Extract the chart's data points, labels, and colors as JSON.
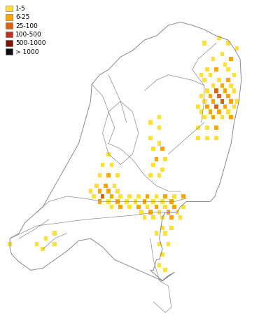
{
  "legend_labels": [
    "1-5",
    "6-25",
    "25-100",
    "100-500",
    "500-1000",
    "> 1000"
  ],
  "legend_colors": [
    "#FFE033",
    "#FFA500",
    "#E06010",
    "#C03020",
    "#801008",
    "#101010"
  ],
  "background_color": "#ffffff",
  "map_edge_color": "#888888",
  "map_linewidth": 0.6,
  "figsize": [
    3.7,
    4.62
  ],
  "dpi": 100,
  "xlim": [
    3.2,
    7.5
  ],
  "ylim": [
    50.7,
    53.75
  ],
  "sq_lon": 0.065,
  "sq_lat": 0.042,
  "squares": [
    {
      "lon": 6.85,
      "lat": 53.4,
      "cat": 1
    },
    {
      "lon": 6.6,
      "lat": 53.35,
      "cat": 1
    },
    {
      "lon": 7.0,
      "lat": 53.35,
      "cat": 1
    },
    {
      "lon": 7.15,
      "lat": 53.3,
      "cat": 1
    },
    {
      "lon": 6.9,
      "lat": 53.25,
      "cat": 1
    },
    {
      "lon": 7.05,
      "lat": 53.2,
      "cat": 2
    },
    {
      "lon": 6.75,
      "lat": 53.2,
      "cat": 1
    },
    {
      "lon": 6.95,
      "lat": 53.15,
      "cat": 1
    },
    {
      "lon": 6.65,
      "lat": 53.1,
      "cat": 1
    },
    {
      "lon": 6.8,
      "lat": 53.1,
      "cat": 2
    },
    {
      "lon": 7.0,
      "lat": 53.1,
      "cat": 1
    },
    {
      "lon": 7.1,
      "lat": 53.05,
      "cat": 1
    },
    {
      "lon": 6.55,
      "lat": 53.05,
      "cat": 1
    },
    {
      "lon": 6.7,
      "lat": 53.05,
      "cat": 1
    },
    {
      "lon": 6.85,
      "lat": 53.0,
      "cat": 1
    },
    {
      "lon": 7.0,
      "lat": 53.0,
      "cat": 2
    },
    {
      "lon": 6.6,
      "lat": 53.0,
      "cat": 1
    },
    {
      "lon": 6.75,
      "lat": 52.95,
      "cat": 1
    },
    {
      "lon": 6.9,
      "lat": 52.95,
      "cat": 2
    },
    {
      "lon": 7.05,
      "lat": 52.95,
      "cat": 1
    },
    {
      "lon": 6.65,
      "lat": 52.9,
      "cat": 1
    },
    {
      "lon": 6.8,
      "lat": 52.9,
      "cat": 3
    },
    {
      "lon": 6.95,
      "lat": 52.9,
      "cat": 2
    },
    {
      "lon": 7.1,
      "lat": 52.9,
      "cat": 1
    },
    {
      "lon": 6.55,
      "lat": 52.85,
      "cat": 1
    },
    {
      "lon": 6.7,
      "lat": 52.85,
      "cat": 2
    },
    {
      "lon": 6.85,
      "lat": 52.85,
      "cat": 3
    },
    {
      "lon": 7.0,
      "lat": 52.85,
      "cat": 2
    },
    {
      "lon": 6.6,
      "lat": 52.8,
      "cat": 1
    },
    {
      "lon": 6.75,
      "lat": 52.8,
      "cat": 2
    },
    {
      "lon": 6.9,
      "lat": 52.8,
      "cat": 3
    },
    {
      "lon": 7.05,
      "lat": 52.8,
      "cat": 2
    },
    {
      "lon": 7.15,
      "lat": 52.8,
      "cat": 1
    },
    {
      "lon": 6.5,
      "lat": 52.75,
      "cat": 1
    },
    {
      "lon": 6.65,
      "lat": 52.75,
      "cat": 2
    },
    {
      "lon": 6.8,
      "lat": 52.75,
      "cat": 3
    },
    {
      "lon": 6.95,
      "lat": 52.75,
      "cat": 2
    },
    {
      "lon": 7.1,
      "lat": 52.75,
      "cat": 1
    },
    {
      "lon": 6.55,
      "lat": 52.7,
      "cat": 1
    },
    {
      "lon": 6.7,
      "lat": 52.7,
      "cat": 2
    },
    {
      "lon": 6.85,
      "lat": 52.7,
      "cat": 2
    },
    {
      "lon": 7.0,
      "lat": 52.7,
      "cat": 1
    },
    {
      "lon": 6.6,
      "lat": 52.65,
      "cat": 1
    },
    {
      "lon": 6.75,
      "lat": 52.65,
      "cat": 2
    },
    {
      "lon": 6.9,
      "lat": 52.65,
      "cat": 1
    },
    {
      "lon": 7.05,
      "lat": 52.65,
      "cat": 2
    },
    {
      "lon": 6.5,
      "lat": 52.55,
      "cat": 1
    },
    {
      "lon": 6.65,
      "lat": 52.55,
      "cat": 1
    },
    {
      "lon": 6.8,
      "lat": 52.55,
      "cat": 2
    },
    {
      "lon": 6.5,
      "lat": 52.45,
      "cat": 1
    },
    {
      "lon": 6.65,
      "lat": 52.45,
      "cat": 1
    },
    {
      "lon": 6.8,
      "lat": 52.45,
      "cat": 1
    },
    {
      "lon": 5.85,
      "lat": 52.65,
      "cat": 1
    },
    {
      "lon": 5.7,
      "lat": 52.6,
      "cat": 1
    },
    {
      "lon": 5.85,
      "lat": 52.55,
      "cat": 1
    },
    {
      "lon": 5.7,
      "lat": 52.45,
      "cat": 1
    },
    {
      "lon": 5.85,
      "lat": 52.4,
      "cat": 1
    },
    {
      "lon": 5.75,
      "lat": 52.35,
      "cat": 1
    },
    {
      "lon": 5.9,
      "lat": 52.35,
      "cat": 2
    },
    {
      "lon": 5.8,
      "lat": 52.25,
      "cat": 2
    },
    {
      "lon": 5.95,
      "lat": 52.25,
      "cat": 1
    },
    {
      "lon": 5.75,
      "lat": 52.2,
      "cat": 1
    },
    {
      "lon": 5.9,
      "lat": 52.15,
      "cat": 1
    },
    {
      "lon": 5.7,
      "lat": 52.1,
      "cat": 1
    },
    {
      "lon": 5.85,
      "lat": 52.1,
      "cat": 1
    },
    {
      "lon": 5.0,
      "lat": 52.3,
      "cat": 1
    },
    {
      "lon": 4.9,
      "lat": 52.2,
      "cat": 1
    },
    {
      "lon": 5.05,
      "lat": 52.2,
      "cat": 1
    },
    {
      "lon": 4.85,
      "lat": 52.1,
      "cat": 1
    },
    {
      "lon": 5.0,
      "lat": 52.1,
      "cat": 2
    },
    {
      "lon": 5.15,
      "lat": 52.1,
      "cat": 1
    },
    {
      "lon": 4.95,
      "lat": 52.0,
      "cat": 2
    },
    {
      "lon": 5.1,
      "lat": 52.0,
      "cat": 1
    },
    {
      "lon": 4.8,
      "lat": 52.0,
      "cat": 1
    },
    {
      "lon": 4.7,
      "lat": 51.95,
      "cat": 1
    },
    {
      "lon": 4.85,
      "lat": 51.95,
      "cat": 2
    },
    {
      "lon": 5.0,
      "lat": 51.95,
      "cat": 2
    },
    {
      "lon": 5.15,
      "lat": 51.95,
      "cat": 1
    },
    {
      "lon": 4.75,
      "lat": 51.9,
      "cat": 1
    },
    {
      "lon": 4.9,
      "lat": 51.9,
      "cat": 3
    },
    {
      "lon": 5.05,
      "lat": 51.9,
      "cat": 2
    },
    {
      "lon": 5.2,
      "lat": 51.9,
      "cat": 1
    },
    {
      "lon": 5.35,
      "lat": 51.9,
      "cat": 1
    },
    {
      "lon": 5.5,
      "lat": 51.9,
      "cat": 1
    },
    {
      "lon": 5.65,
      "lat": 51.9,
      "cat": 2
    },
    {
      "lon": 5.8,
      "lat": 51.9,
      "cat": 1
    },
    {
      "lon": 5.95,
      "lat": 51.9,
      "cat": 2
    },
    {
      "lon": 6.1,
      "lat": 51.9,
      "cat": 1
    },
    {
      "lon": 6.25,
      "lat": 51.9,
      "cat": 2
    },
    {
      "lon": 5.9,
      "lat": 51.85,
      "cat": 1
    },
    {
      "lon": 6.05,
      "lat": 51.85,
      "cat": 2
    },
    {
      "lon": 5.75,
      "lat": 51.85,
      "cat": 1
    },
    {
      "lon": 5.6,
      "lat": 51.85,
      "cat": 2
    },
    {
      "lon": 5.45,
      "lat": 51.85,
      "cat": 1
    },
    {
      "lon": 5.3,
      "lat": 51.85,
      "cat": 1
    },
    {
      "lon": 5.15,
      "lat": 51.85,
      "cat": 2
    },
    {
      "lon": 5.0,
      "lat": 51.85,
      "cat": 1
    },
    {
      "lon": 4.85,
      "lat": 51.85,
      "cat": 2
    },
    {
      "lon": 5.95,
      "lat": 51.8,
      "cat": 1
    },
    {
      "lon": 6.1,
      "lat": 51.8,
      "cat": 2
    },
    {
      "lon": 6.25,
      "lat": 51.8,
      "cat": 1
    },
    {
      "lon": 5.8,
      "lat": 51.8,
      "cat": 2
    },
    {
      "lon": 5.65,
      "lat": 51.8,
      "cat": 1
    },
    {
      "lon": 5.5,
      "lat": 51.8,
      "cat": 2
    },
    {
      "lon": 5.35,
      "lat": 51.8,
      "cat": 1
    },
    {
      "lon": 5.2,
      "lat": 51.8,
      "cat": 2
    },
    {
      "lon": 5.05,
      "lat": 51.8,
      "cat": 1
    },
    {
      "lon": 6.0,
      "lat": 51.75,
      "cat": 2
    },
    {
      "lon": 6.15,
      "lat": 51.75,
      "cat": 1
    },
    {
      "lon": 5.85,
      "lat": 51.75,
      "cat": 1
    },
    {
      "lon": 5.7,
      "lat": 51.75,
      "cat": 2
    },
    {
      "lon": 5.55,
      "lat": 51.75,
      "cat": 1
    },
    {
      "lon": 5.9,
      "lat": 51.7,
      "cat": 1
    },
    {
      "lon": 6.05,
      "lat": 51.7,
      "cat": 2
    },
    {
      "lon": 6.2,
      "lat": 51.7,
      "cat": 1
    },
    {
      "lon": 5.75,
      "lat": 51.7,
      "cat": 1
    },
    {
      "lon": 5.6,
      "lat": 51.7,
      "cat": 1
    },
    {
      "lon": 5.9,
      "lat": 51.6,
      "cat": 1
    },
    {
      "lon": 6.05,
      "lat": 51.6,
      "cat": 1
    },
    {
      "lon": 5.8,
      "lat": 51.55,
      "cat": 1
    },
    {
      "lon": 5.95,
      "lat": 51.55,
      "cat": 1
    },
    {
      "lon": 5.85,
      "lat": 51.45,
      "cat": 1
    },
    {
      "lon": 6.0,
      "lat": 51.45,
      "cat": 1
    },
    {
      "lon": 5.9,
      "lat": 51.35,
      "cat": 1
    },
    {
      "lon": 5.85,
      "lat": 51.25,
      "cat": 1
    },
    {
      "lon": 5.95,
      "lat": 51.2,
      "cat": 1
    },
    {
      "lon": 4.1,
      "lat": 51.55,
      "cat": 1
    },
    {
      "lon": 3.95,
      "lat": 51.5,
      "cat": 1
    },
    {
      "lon": 4.1,
      "lat": 51.45,
      "cat": 1
    },
    {
      "lon": 3.9,
      "lat": 51.4,
      "cat": 1
    },
    {
      "lon": 3.8,
      "lat": 51.45,
      "cat": 1
    },
    {
      "lon": 3.35,
      "lat": 51.45,
      "cat": 1
    }
  ]
}
